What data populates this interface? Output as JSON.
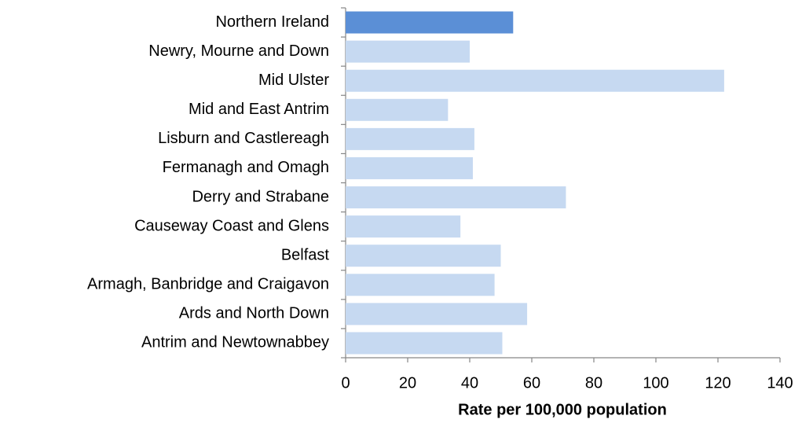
{
  "chart_data": {
    "type": "hbar",
    "categories": [
      "Northern Ireland",
      "Newry, Mourne and Down",
      "Mid Ulster",
      "Mid and East Antrim",
      "Lisburn and Castlereagh",
      "Fermanagh and Omagh",
      "Derry and Strabane",
      "Causeway Coast and Glens",
      "Belfast",
      "Armagh, Banbridge and Craigavon",
      "Ards and North Down",
      "Antrim and Newtownabbey"
    ],
    "values": [
      54,
      40,
      122,
      33,
      41.5,
      41,
      71,
      37,
      50,
      48,
      58.5,
      50.5
    ],
    "colors": [
      "#5b8fd6",
      "#c6d9f1",
      "#c6d9f1",
      "#c6d9f1",
      "#c6d9f1",
      "#c6d9f1",
      "#c6d9f1",
      "#c6d9f1",
      "#c6d9f1",
      "#c6d9f1",
      "#c6d9f1",
      "#c6d9f1"
    ],
    "x_label": "Rate per 100,000 population",
    "xlim": [
      0,
      140
    ],
    "xticks": [
      0,
      20,
      40,
      60,
      80,
      100,
      120,
      140
    ]
  }
}
